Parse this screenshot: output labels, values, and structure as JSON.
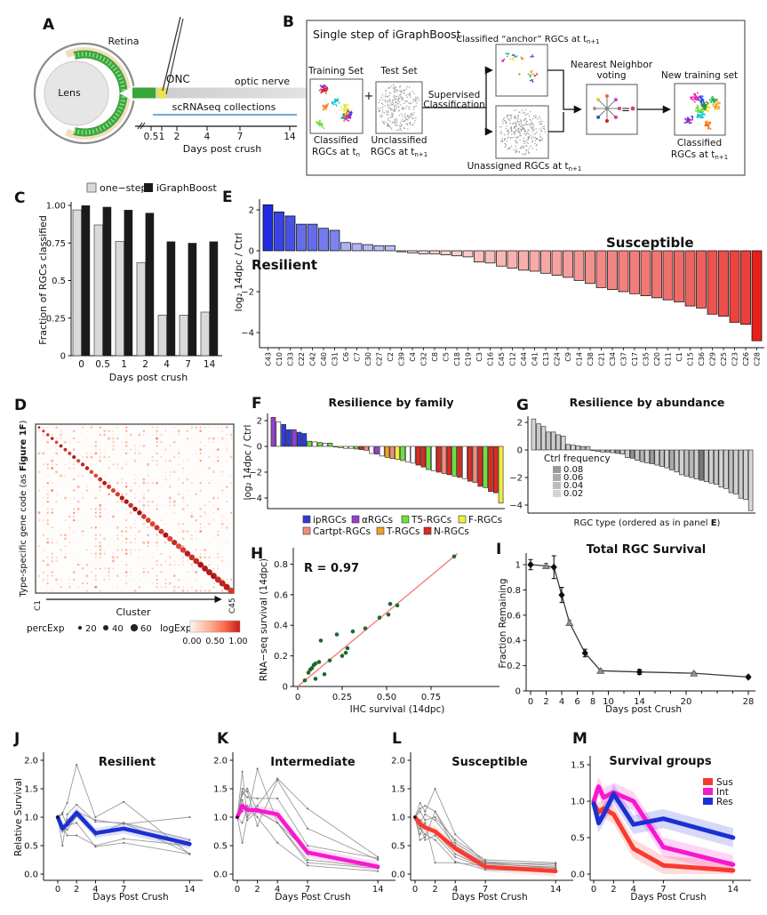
{
  "panels": {
    "A": {
      "letter": "A",
      "retina": "Retina",
      "lens": "Lens",
      "onc": "ONC",
      "optic_nerve": "optic nerve",
      "collections": "scRNAseq collections",
      "ticks": [
        "0.5",
        "1",
        "2",
        "4",
        "7",
        "14"
      ],
      "xlabel": "Days post crush"
    },
    "B": {
      "letter": "B",
      "title": "Single step of iGraphBoost",
      "training_set": "Training Set",
      "test_set": "Test Set",
      "plus": "+",
      "supervised1": "Supervised",
      "supervised2": "Classification",
      "anchor_pre": "Classified “anchor” RGCs at t",
      "anchor_sub": "n+1",
      "nn1": "Nearest Neighbor",
      "nn2": "voting",
      "new_training": "New training set",
      "equals": "=",
      "train_cap1": "Classified",
      "train_cap2": "RGCs at t",
      "train_cap_sub": "n",
      "test_cap1": "Unclassified",
      "test_cap2": "RGCs at t",
      "test_cap_sub": "n+1",
      "unassigned_pre": "Unassigned RGCs at t",
      "unassigned_sub": "n+1",
      "new_cap1": "Classified",
      "new_cap2": "RGCs at t",
      "new_cap_sub": "n+1"
    },
    "C": {
      "letter": "C"
    },
    "D": {
      "letter": "D"
    },
    "E": {
      "letter": "E"
    },
    "F": {
      "letter": "F"
    },
    "G": {
      "letter": "G"
    },
    "H": {
      "letter": "H"
    },
    "I": {
      "letter": "I"
    },
    "J": {
      "letter": "J"
    },
    "K": {
      "letter": "K"
    },
    "L": {
      "letter": "L"
    },
    "M": {
      "letter": "M"
    }
  },
  "chart_data": [
    {
      "id": "C",
      "type": "bar",
      "categories": [
        "0",
        "0.5",
        "1",
        "2",
        "4",
        "7",
        "14"
      ],
      "series": [
        {
          "name": "one−step",
          "color": "#d9d9d9",
          "values": [
            0.97,
            0.87,
            0.76,
            0.62,
            0.27,
            0.27,
            0.29
          ]
        },
        {
          "name": "iGraphBoost",
          "color": "#1a1a1a",
          "values": [
            1.0,
            0.99,
            0.97,
            0.95,
            0.76,
            0.75,
            0.76
          ]
        }
      ],
      "xlabel": "Days post crush",
      "ylabel": "Fraction of RGCs classified",
      "yticks": [
        0,
        0.25,
        0.5,
        0.75,
        1
      ],
      "ytick_labels": [
        "0",
        "0.25",
        "0.5",
        "0.75",
        "1.00"
      ],
      "ylim": [
        0,
        1.02
      ]
    },
    {
      "id": "D",
      "type": "dotplot",
      "n_clusters": 45,
      "ylabel_pre": "Type-specific gene code (as ",
      "ylabel_bold": "Figure 1F",
      "ylabel_post": ")",
      "xlabel": "Cluster",
      "x_start": "C1",
      "x_end": "C45",
      "legend": {
        "perc_label": "percExp",
        "sizes": [
          "20",
          "40",
          "60"
        ],
        "log_label": "logExp",
        "gradient_labels": [
          "0.00",
          "0.50",
          "1.00"
        ]
      }
    },
    {
      "id": "E",
      "type": "bar",
      "ylabel": "log₂ 14dpc / Ctrl",
      "yticks": [
        2,
        0,
        -2,
        -4
      ],
      "ytick_labels": [
        "2",
        "0",
        "−2",
        "−4"
      ],
      "ylim": [
        2.4,
        -4.6
      ],
      "annotations": {
        "left": "Resilient",
        "left_color": "#2233cc",
        "right": "Susceptible",
        "right_color": "#e31a1a"
      },
      "categories": [
        "C43",
        "C10",
        "C33",
        "C22",
        "C42",
        "C40",
        "C31",
        "C6",
        "C7",
        "C30",
        "C27",
        "C2",
        "C39",
        "C4",
        "C32",
        "C8",
        "C5",
        "C18",
        "C19",
        "C3",
        "C16",
        "C45",
        "C12",
        "C44",
        "C41",
        "C13",
        "C24",
        "C9",
        "C14",
        "C38",
        "C21",
        "C34",
        "C37",
        "C17",
        "C35",
        "C20",
        "C11",
        "C1",
        "C15",
        "C36",
        "C29",
        "C25",
        "C23",
        "C26",
        "C28"
      ],
      "values": [
        2.25,
        1.9,
        1.7,
        1.3,
        1.3,
        1.1,
        1.0,
        0.4,
        0.35,
        0.3,
        0.25,
        0.25,
        -0.05,
        -0.1,
        -0.15,
        -0.15,
        -0.2,
        -0.25,
        -0.3,
        -0.55,
        -0.6,
        -0.75,
        -0.85,
        -0.95,
        -1.0,
        -1.1,
        -1.2,
        -1.3,
        -1.45,
        -1.6,
        -1.8,
        -1.9,
        -2.0,
        -2.1,
        -2.2,
        -2.3,
        -2.4,
        -2.5,
        -2.7,
        -2.8,
        -3.1,
        -3.2,
        -3.5,
        -3.6,
        -4.4
      ]
    },
    {
      "id": "F",
      "type": "bar",
      "title": "Resilience by family",
      "ylabel": "log₂ 14dpc / Ctrl",
      "yticks": [
        2,
        0,
        -2,
        -4
      ],
      "ytick_labels": [
        "2",
        "0",
        "−2",
        "−4"
      ],
      "values": [
        2.25,
        1.9,
        1.7,
        1.3,
        1.3,
        1.1,
        1.0,
        0.4,
        0.35,
        0.3,
        0.25,
        0.25,
        -0.05,
        -0.1,
        -0.15,
        -0.15,
        -0.2,
        -0.25,
        -0.3,
        -0.55,
        -0.6,
        -0.75,
        -0.85,
        -0.95,
        -1.0,
        -1.1,
        -1.2,
        -1.3,
        -1.45,
        -1.6,
        -1.8,
        -1.9,
        -2.0,
        -2.1,
        -2.2,
        -2.3,
        -2.4,
        -2.5,
        -2.7,
        -2.8,
        -3.1,
        -3.2,
        -3.5,
        -3.6,
        -4.4
      ],
      "bar_colors": [
        "#9440cf",
        "#ffffff",
        "#2e3bd7",
        "#2e3bd7",
        "#9440cf",
        "#2e3bd7",
        "#2e3bd7",
        "#6fe03a",
        "#ffffff",
        "#6fe03a",
        "#ffffff",
        "#6fe03a",
        "#ffffff",
        "#eded3a",
        "#ffffff",
        "#ffffff",
        "#6fe03a",
        "#d92b22",
        "#ef8f80",
        "#ffffff",
        "#9440cf",
        "#ffffff",
        "#efa024",
        "#ef8f80",
        "#eded3a",
        "#6fe03a",
        "#ffffff",
        "#ffffff",
        "#d92b22",
        "#d92b22",
        "#6fe03a",
        "#ffffff",
        "#d92b22",
        "#ef8f80",
        "#d92b22",
        "#6fe03a",
        "#d92b22",
        "#ffffff",
        "#d92b22",
        "#ef8f80",
        "#d92b22",
        "#6fe03a",
        "#d92b22",
        "#d92b22",
        "#eded3a"
      ],
      "legend": [
        {
          "label": "ipRGCs",
          "color": "#2e3bd7"
        },
        {
          "label": "αRGCs",
          "color": "#9440cf"
        },
        {
          "label": "T5-RGCs",
          "color": "#6fe03a"
        },
        {
          "label": "F-RGCs",
          "color": "#eded3a"
        },
        {
          "label": "Cartpt-RGCs",
          "color": "#ef8f80"
        },
        {
          "label": "T-RGCs",
          "color": "#efa024"
        },
        {
          "label": "N-RGCs",
          "color": "#d92b22"
        }
      ]
    },
    {
      "id": "G",
      "type": "bar",
      "title": "Resilience by abundance",
      "legend_title": "Ctrl frequency",
      "legend_values": [
        "0.08",
        "0.06",
        "0.04",
        "0.02"
      ],
      "legend_grays": [
        "#999999",
        "#ababab",
        "#bdbdbd",
        "#d3d3d3"
      ],
      "xlabel_pre": "RGC type (ordered as in panel ",
      "xlabel_bold": "E",
      "xlabel_post": ")",
      "yticks": [
        2,
        0,
        -2,
        -4
      ],
      "ytick_labels": [
        "2",
        "0",
        "−2",
        "−4"
      ],
      "values": [
        2.25,
        1.9,
        1.7,
        1.3,
        1.3,
        1.1,
        1.0,
        0.4,
        0.35,
        0.3,
        0.25,
        0.25,
        -0.05,
        -0.1,
        -0.15,
        -0.15,
        -0.2,
        -0.25,
        -0.3,
        -0.55,
        -0.6,
        -0.75,
        -0.85,
        -0.95,
        -1.0,
        -1.1,
        -1.2,
        -1.3,
        -1.45,
        -1.6,
        -1.8,
        -1.9,
        -2.0,
        -2.1,
        -2.2,
        -2.3,
        -2.4,
        -2.5,
        -2.7,
        -2.8,
        -3.1,
        -3.2,
        -3.5,
        -3.6,
        -4.4
      ],
      "bar_grays": [
        "#d6d6d6",
        "#c9c9c9",
        "#d2d2d2",
        "#c4c4c4",
        "#cecece",
        "#c7c7c7",
        "#d4d4d4",
        "#cbcbcb",
        "#d8d8d8",
        "#d0d0d0",
        "#bdbdbd",
        "#cbcbcb",
        "#d4d4d4",
        "#c7c7c7",
        "#d0d0d0",
        "#a6a6a6",
        "#cecece",
        "#989898",
        "#cbcbcb",
        "#d0d0d0",
        "#8d8d8d",
        "#c4c4c4",
        "#b3b3b3",
        "#d0d0d0",
        "#9b9b9b",
        "#cecece",
        "#c0c0c0",
        "#d4d4d4",
        "#a9a9a9",
        "#cbcbcb",
        "#d0d0d0",
        "#c4c4c4",
        "#b6b6b6",
        "#cecece",
        "#777777",
        "#cbcbcb",
        "#d0d0d0",
        "#c7c7c7",
        "#d4d4d4",
        "#cecece",
        "#c0c0c0",
        "#d0d0d0",
        "#cbcbcb",
        "#d4d4d4",
        "#d8d8d8"
      ]
    },
    {
      "id": "H",
      "type": "scatter",
      "r_label": "R = 0.97",
      "xlabel": "IHC survival (14dpc)",
      "ylabel": "RNA−seq survival (14dpc)",
      "xticks": [
        0,
        0.25,
        0.5,
        0.75
      ],
      "xtick_labels": [
        "0",
        "0.25",
        "0.50",
        "0.75"
      ],
      "yticks": [
        0,
        0.2,
        0.4,
        0.6,
        0.8
      ],
      "ytick_labels": [
        "0",
        "0.2",
        "0.4",
        "0.6",
        "0.8"
      ],
      "point_color": "#1e6b2d",
      "fit_line": {
        "x1": 0,
        "y1": 0,
        "x2": 0.9,
        "y2": 0.87,
        "color": "#f98a8a"
      },
      "points": [
        [
          0.04,
          0.04
        ],
        [
          0.06,
          0.09
        ],
        [
          0.07,
          0.11
        ],
        [
          0.08,
          0.12
        ],
        [
          0.09,
          0.14
        ],
        [
          0.1,
          0.05
        ],
        [
          0.1,
          0.15
        ],
        [
          0.12,
          0.16
        ],
        [
          0.13,
          0.3
        ],
        [
          0.15,
          0.08
        ],
        [
          0.18,
          0.17
        ],
        [
          0.22,
          0.34
        ],
        [
          0.25,
          0.2
        ],
        [
          0.27,
          0.22
        ],
        [
          0.28,
          0.25
        ],
        [
          0.31,
          0.36
        ],
        [
          0.38,
          0.38
        ],
        [
          0.46,
          0.45
        ],
        [
          0.51,
          0.47
        ],
        [
          0.52,
          0.54
        ],
        [
          0.56,
          0.53
        ],
        [
          0.88,
          0.85
        ]
      ]
    },
    {
      "id": "I",
      "type": "line",
      "title": "Total RGC Survival",
      "xlabel": "Days post Crush",
      "ylabel": "Fraction Remaining",
      "xticks": [
        0,
        2,
        4,
        6,
        8,
        10,
        14,
        20,
        28
      ],
      "xtick_labels": [
        "0",
        "2",
        "4",
        "6",
        "8",
        "10",
        "14",
        "20",
        "28"
      ],
      "minor_xticks": [
        12,
        16,
        18,
        22,
        24,
        26
      ],
      "yticks": [
        0,
        0.2,
        0.4,
        0.6,
        0.8,
        1
      ],
      "ytick_labels": [
        "0",
        "0.2",
        "0.4",
        "0.6",
        "0.8",
        "1"
      ],
      "diamond_series": {
        "x": [
          0,
          3,
          4,
          7,
          14,
          28
        ],
        "y": [
          1.0,
          0.98,
          0.76,
          0.3,
          0.15,
          0.11
        ],
        "err": [
          0.04,
          0.09,
          0.06,
          0.03,
          0.02,
          0.01
        ]
      },
      "triangle_series": {
        "x": [
          2,
          5,
          9,
          21
        ],
        "y": [
          0.99,
          0.54,
          0.16,
          0.14
        ],
        "err": [
          0.02,
          0.02,
          0.01,
          0.01
        ]
      }
    },
    {
      "id": "J",
      "type": "spaghetti",
      "title": "Resilient",
      "title_color": "#2a2ab8",
      "mean_color": "#1c2fd4",
      "ylabel": "Relative Survival",
      "xlabel": "Days Post Crush",
      "x": [
        0,
        0.5,
        1,
        2,
        4,
        7,
        14
      ],
      "xticks": [
        0,
        2,
        4,
        7,
        14
      ],
      "xtick_labels": [
        "0",
        "2",
        "4",
        "7",
        "14"
      ],
      "yticks": [
        0,
        0.5,
        1,
        1.5,
        2
      ],
      "ytick_labels": [
        "0.0",
        "0.5",
        "1.0",
        "1.5",
        "2.0"
      ],
      "mean": [
        1.0,
        0.8,
        0.88,
        1.08,
        0.72,
        0.8,
        0.53
      ],
      "lines": [
        [
          1.0,
          1.08,
          1.25,
          1.92,
          1.0,
          1.27,
          0.35
        ],
        [
          1.0,
          0.5,
          1.05,
          1.22,
          0.92,
          0.9,
          0.36
        ],
        [
          1.0,
          0.85,
          0.68,
          0.68,
          0.5,
          0.62,
          0.5
        ],
        [
          1.0,
          1.05,
          0.85,
          0.9,
          0.48,
          0.55,
          0.35
        ],
        [
          1.0,
          0.75,
          0.95,
          1.1,
          0.95,
          0.88,
          1.0
        ],
        [
          1.0,
          0.8,
          0.78,
          1.02,
          0.68,
          0.9,
          0.6
        ]
      ]
    },
    {
      "id": "K",
      "type": "spaghetti",
      "title": "Intermediate",
      "title_color": "#dd1690",
      "mean_color": "#f718ce",
      "xlabel": "Days Post Crush",
      "x": [
        0,
        0.5,
        1,
        2,
        4,
        7,
        14
      ],
      "xticks": [
        0,
        2,
        4,
        7,
        14
      ],
      "xtick_labels": [
        "0",
        "2",
        "4",
        "7",
        "14"
      ],
      "yticks": [
        0,
        0.5,
        1,
        1.5,
        2
      ],
      "ytick_labels": [
        "0.0",
        "0.5",
        "1.0",
        "1.5",
        "2.0"
      ],
      "mean": [
        1.0,
        1.2,
        1.13,
        1.12,
        1.05,
        0.38,
        0.13
      ],
      "lines": [
        [
          1.0,
          1.8,
          1.0,
          1.85,
          0.9,
          0.4,
          0.1
        ],
        [
          1.0,
          1.5,
          1.45,
          0.85,
          1.65,
          0.8,
          0.25
        ],
        [
          1.0,
          1.45,
          1.35,
          1.33,
          1.33,
          0.5,
          0.28
        ],
        [
          1.0,
          0.55,
          1.0,
          1.2,
          1.68,
          1.15,
          0.3
        ],
        [
          1.0,
          1.3,
          0.95,
          1.1,
          0.9,
          0.2,
          0.1
        ],
        [
          1.0,
          1.1,
          1.2,
          1.0,
          0.55,
          0.15,
          0.05
        ],
        [
          1.0,
          0.9,
          1.15,
          1.15,
          1.05,
          0.35,
          0.15
        ],
        [
          1.0,
          1.4,
          1.5,
          1.1,
          0.9,
          0.25,
          0.12
        ]
      ]
    },
    {
      "id": "L",
      "type": "spaghetti",
      "title": "Susceptible",
      "title_color": "#e82020",
      "mean_color": "#f83a31",
      "xlabel": "Days Post Crush",
      "x": [
        0,
        0.5,
        1,
        2,
        4,
        7,
        14
      ],
      "xticks": [
        0,
        2,
        4,
        7,
        14
      ],
      "xtick_labels": [
        "0",
        "2",
        "4",
        "7",
        "14"
      ],
      "yticks": [
        0,
        0.5,
        1,
        1.5,
        2
      ],
      "ytick_labels": [
        "0.0",
        "0.5",
        "1.0",
        "1.5",
        "2.0"
      ],
      "mean": [
        1.0,
        0.88,
        0.82,
        0.75,
        0.45,
        0.13,
        0.05
      ],
      "lines": [
        [
          1.0,
          1.25,
          1.1,
          1.5,
          0.7,
          0.2,
          0.18
        ],
        [
          1.0,
          1.15,
          1.2,
          1.1,
          0.55,
          0.22,
          0.15
        ],
        [
          1.0,
          0.6,
          0.65,
          1.1,
          0.45,
          0.2,
          0.1
        ],
        [
          1.0,
          0.9,
          1.05,
          0.95,
          0.5,
          0.18,
          0.12
        ],
        [
          1.0,
          0.85,
          0.6,
          0.68,
          0.3,
          0.1,
          0.05
        ],
        [
          1.0,
          0.7,
          0.9,
          0.2,
          0.2,
          0.15,
          0.1
        ],
        [
          1.0,
          1.1,
          0.95,
          1.0,
          0.6,
          0.25,
          0.2
        ],
        [
          1.0,
          0.95,
          0.85,
          0.75,
          0.35,
          0.12,
          0.08
        ],
        [
          1.0,
          0.8,
          0.7,
          0.6,
          0.22,
          0.08,
          0.04
        ]
      ]
    },
    {
      "id": "M",
      "type": "bands",
      "title": "Survival groups",
      "xlabel": "Days Post Crush",
      "band": 0.13,
      "x": [
        0,
        0.5,
        1,
        2,
        4,
        7,
        14
      ],
      "xticks": [
        0,
        2,
        4,
        7,
        14
      ],
      "xtick_labels": [
        "0",
        "2",
        "4",
        "7",
        "14"
      ],
      "yticks": [
        0,
        0.5,
        1,
        1.5
      ],
      "ytick_labels": [
        "0.0",
        "0.5",
        "1.0",
        "1.5"
      ],
      "series": [
        {
          "name": "Sus",
          "color": "#f83a31",
          "values": [
            0.97,
            0.85,
            0.9,
            0.82,
            0.35,
            0.12,
            0.05
          ]
        },
        {
          "name": "Int",
          "color": "#f718ce",
          "values": [
            1.0,
            1.2,
            1.05,
            1.12,
            1.0,
            0.37,
            0.13
          ]
        },
        {
          "name": "Res",
          "color": "#1c2fd4",
          "values": [
            0.97,
            0.7,
            0.82,
            1.1,
            0.68,
            0.76,
            0.5
          ]
        }
      ]
    }
  ]
}
